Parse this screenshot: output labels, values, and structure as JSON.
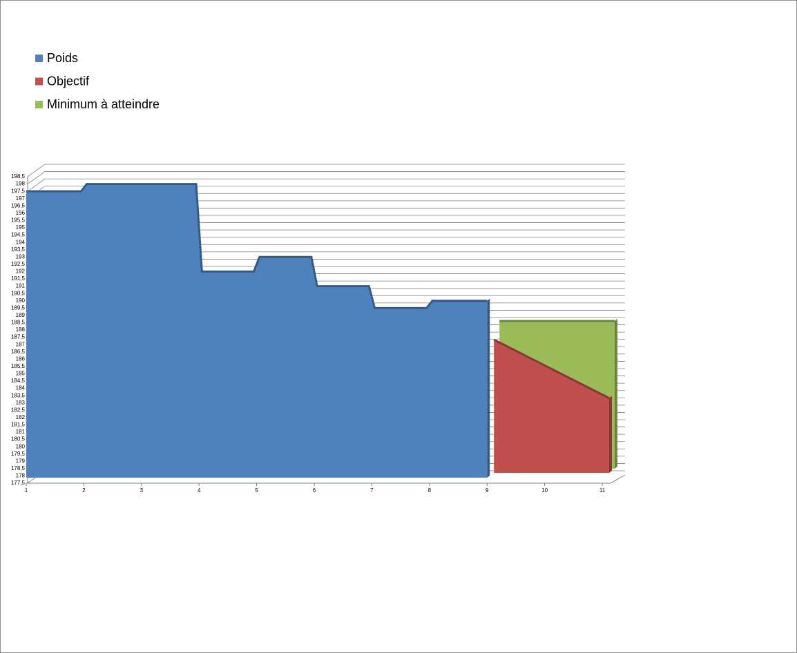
{
  "chart_data": {
    "type": "area",
    "series": [
      {
        "name": "Poids",
        "color": "#4f81bd",
        "x": [
          1,
          1.95,
          2.05,
          3.95,
          4.05,
          4.95,
          5.05,
          5.95,
          6.05,
          6.95,
          7.05,
          7.95,
          8.05,
          9
        ],
        "values": [
          197.5,
          197.5,
          198,
          198,
          192,
          192,
          193,
          193,
          191,
          191,
          189.5,
          189.5,
          190,
          190
        ]
      },
      {
        "name": "Objectif",
        "color": "#c0504d",
        "x": [
          9,
          11
        ],
        "values": [
          187,
          183
        ]
      },
      {
        "name": "Minimum à atteindre",
        "color": "#9bbb59",
        "x": [
          9,
          11
        ],
        "values": [
          188,
          188
        ]
      }
    ],
    "xlim": [
      1,
      11
    ],
    "xticks": [
      1,
      2,
      3,
      4,
      5,
      6,
      7,
      8,
      9,
      10,
      11
    ],
    "ylim": [
      177.5,
      198.5
    ],
    "yticks": [
      {
        "value": 177.5,
        "label": "177,5"
      },
      178,
      {
        "value": 178.5,
        "label": "178,5"
      },
      179,
      {
        "value": 179.5,
        "label": "179,5"
      },
      180,
      {
        "value": 180.5,
        "label": "180,5"
      },
      181,
      {
        "value": 181.5,
        "label": "181,5"
      },
      182,
      {
        "value": 182.5,
        "label": "182,5"
      },
      183,
      {
        "value": 183.5,
        "label": "183,5"
      },
      184,
      {
        "value": 184.5,
        "label": "184,5"
      },
      185,
      {
        "value": 185.5,
        "label": "185,5"
      },
      186,
      {
        "value": 186.5,
        "label": "186,5"
      },
      187,
      {
        "value": 187.5,
        "label": "187,5"
      },
      188,
      {
        "value": 188.5,
        "label": "188,5"
      },
      189,
      {
        "value": 189.5,
        "label": "189,5"
      },
      190,
      {
        "value": 190.5,
        "label": "190,5"
      },
      191,
      {
        "value": 191.5,
        "label": "191,5"
      },
      192,
      {
        "value": 192.5,
        "label": "192,5"
      },
      193,
      {
        "value": 193.5,
        "label": "193,5"
      },
      194,
      {
        "value": 194.5,
        "label": "194,5"
      },
      195,
      {
        "value": 195.5,
        "label": "195,5"
      },
      196,
      {
        "value": 196.5,
        "label": "196,5"
      },
      197,
      {
        "value": 197.5,
        "label": "197,5"
      },
      198,
      {
        "value": 198.5,
        "label": "198,5"
      }
    ],
    "grid": true,
    "legend": "top-left"
  }
}
